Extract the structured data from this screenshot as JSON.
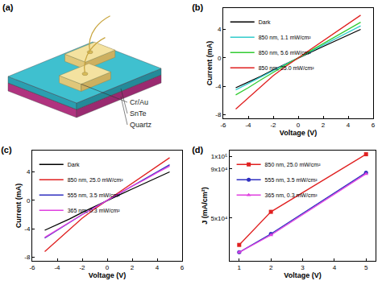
{
  "diagram": {
    "title": "(a)",
    "labels": [
      "Cr/Au",
      "SnTe",
      "Quartz"
    ]
  },
  "chart_data": [
    {
      "type": "line",
      "title": "(b)",
      "x_label": "Voltage (V)",
      "y_label": "Current (mA)",
      "x": [
        -5,
        -4,
        -3,
        -2,
        -1,
        0,
        1,
        2,
        3,
        4,
        5
      ],
      "xlim": [
        -6,
        6
      ],
      "xticks": [
        -6,
        -4,
        -2,
        0,
        2,
        4,
        6
      ],
      "ylim": [
        -8.5,
        7
      ],
      "yticks": [
        -8,
        -4,
        0,
        4
      ],
      "grid": false,
      "legend": "upper left",
      "line_style": "solid",
      "series": [
        {
          "name": "Dark",
          "color": "#000000",
          "values": [
            -4.2,
            -3.4,
            -2.6,
            -1.7,
            -0.85,
            0,
            0.8,
            1.6,
            2.4,
            3.2,
            4.0
          ]
        },
        {
          "name": "850 nm, 1.1 mW/cm²",
          "color": "#33cccc",
          "values": [
            -4.5,
            -3.6,
            -2.7,
            -1.8,
            -0.9,
            0,
            0.9,
            1.8,
            2.7,
            3.6,
            4.5
          ]
        },
        {
          "name": "850 nm, 5.6 mW/cm²",
          "color": "#33cc33",
          "values": [
            -5.2,
            -4.2,
            -3.1,
            -2.0,
            -1.0,
            0,
            1.0,
            2.0,
            3.0,
            4.0,
            5.0
          ]
        },
        {
          "name": "850 nm, 25.0 mW/cm²",
          "color": "#e02020",
          "values": [
            -7.2,
            -5.6,
            -4.0,
            -2.5,
            -1.2,
            0,
            1.2,
            2.4,
            3.6,
            4.8,
            6.0
          ]
        }
      ]
    },
    {
      "type": "line",
      "title": "(c)",
      "x_label": "Voltage (V)",
      "y_label": "Current (mA)",
      "x": [
        -5,
        -4,
        -3,
        -2,
        -1,
        0,
        1,
        2,
        3,
        4,
        5
      ],
      "xlim": [
        -6,
        6
      ],
      "xticks": [
        -6,
        -4,
        -2,
        0,
        2,
        4,
        6
      ],
      "ylim": [
        -8.5,
        7
      ],
      "yticks": [
        -8,
        -4,
        0,
        4
      ],
      "grid": false,
      "legend": "upper left",
      "line_style": "solid",
      "series": [
        {
          "name": "Dark",
          "color": "#000000",
          "values": [
            -4.2,
            -3.4,
            -2.6,
            -1.7,
            -0.85,
            0,
            0.8,
            1.6,
            2.4,
            3.2,
            4.0
          ]
        },
        {
          "name": "850 nm, 25.0 mW/cm²",
          "color": "#e02020",
          "values": [
            -7.2,
            -5.6,
            -4.0,
            -2.5,
            -1.2,
            0,
            1.2,
            2.4,
            3.6,
            4.8,
            6.0
          ]
        },
        {
          "name": "555 nm, 3.5 mW/cm²",
          "color": "#3030c0",
          "values": [
            -5.3,
            -4.2,
            -3.1,
            -2.0,
            -1.0,
            0,
            1.0,
            2.0,
            3.0,
            4.0,
            5.0
          ]
        },
        {
          "name": "365 nm, 0.3 mW/cm²",
          "color": "#e040e0",
          "values": [
            -5.2,
            -4.1,
            -3.0,
            -2.0,
            -1.0,
            0,
            1.0,
            2.0,
            2.9,
            3.9,
            4.8
          ]
        }
      ]
    },
    {
      "type": "line",
      "title": "(d)",
      "x_label": "Voltage (V)",
      "y_label": "J (mA/cm²)",
      "x": [
        1,
        2,
        5
      ],
      "xlim": [
        0.7,
        5.3
      ],
      "xticks": [
        1,
        2,
        3,
        4,
        5
      ],
      "ylim": [
        15000,
        105000
      ],
      "yticks": [
        {
          "value": 50000,
          "label": "5x10⁴"
        },
        {
          "value": 90000,
          "label": "9x10⁴"
        },
        {
          "value": 100000,
          "label": "1x10⁵"
        }
      ],
      "grid": false,
      "legend": "upper left",
      "line_style": "solid",
      "series": [
        {
          "name": "850 nm, 25.0 mW/cm²",
          "color": "#e02020",
          "marker": "square",
          "values": [
            28000,
            55000,
            102000
          ]
        },
        {
          "name": "555 nm, 3.5 mW/cm²",
          "color": "#3030c0",
          "marker": "circle",
          "values": [
            22000,
            37000,
            87000
          ]
        },
        {
          "name": "365 nm, 0.3 mW/cm²",
          "color": "#e040e0",
          "marker": "triangle-up",
          "values": [
            22000,
            36000,
            86000
          ]
        }
      ]
    }
  ]
}
